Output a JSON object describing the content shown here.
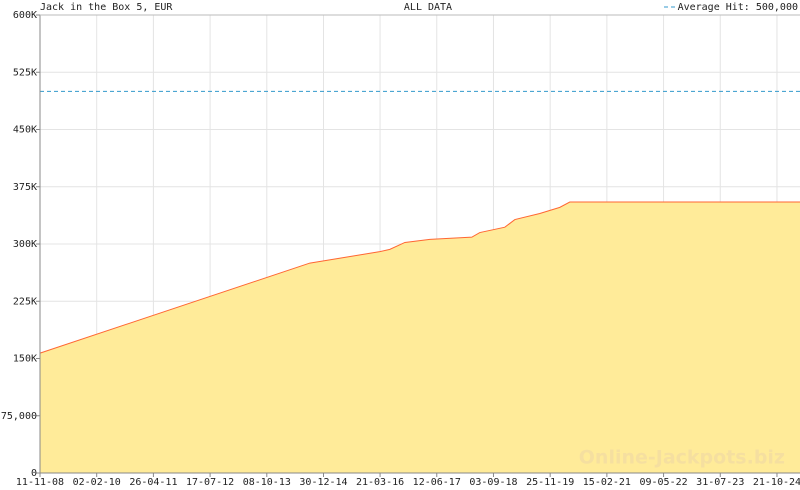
{
  "chart_data": {
    "type": "area",
    "title": "Jack in the Box  5, EUR",
    "subtitle": "ALL DATA",
    "watermark": "Online-Jackpots.biz",
    "reference": {
      "value": 500000,
      "label": "Average Hit: 500,000",
      "color": "#3399cc"
    },
    "x": [
      "2008-11-11",
      "2014-09-13",
      "2016-03-19",
      "2016-06-06",
      "2016-10-03",
      "2017-04-18",
      "2018-03-16",
      "2018-05-18",
      "2018-12-02",
      "2019-02-19",
      "2019-09-04",
      "2020-02-09",
      "2020-04-28",
      "2025-04-21"
    ],
    "series": [
      {
        "name": "Jack in the Box",
        "color": "#ff6633",
        "fill": "#ffeb99",
        "values": [
          157000,
          275000,
          290000,
          293000,
          302000,
          306000,
          309000,
          315000,
          322000,
          332000,
          340000,
          348000,
          355000,
          355000
        ]
      }
    ],
    "xlim": [
      "2008-11-11",
      "2025-04-21"
    ],
    "xticks": [
      {
        "value": "2008-11-11",
        "label": "11-11-08"
      },
      {
        "value": "2010-02-02",
        "label": "02-02-10"
      },
      {
        "value": "2011-04-26",
        "label": "26-04-11"
      },
      {
        "value": "2012-07-17",
        "label": "17-07-12"
      },
      {
        "value": "2013-10-08",
        "label": "08-10-13"
      },
      {
        "value": "2014-12-30",
        "label": "30-12-14"
      },
      {
        "value": "2016-03-21",
        "label": "21-03-16"
      },
      {
        "value": "2017-06-12",
        "label": "12-06-17"
      },
      {
        "value": "2018-09-03",
        "label": "03-09-18"
      },
      {
        "value": "2019-11-25",
        "label": "25-11-19"
      },
      {
        "value": "2021-02-15",
        "label": "15-02-21"
      },
      {
        "value": "2022-05-09",
        "label": "09-05-22"
      },
      {
        "value": "2023-07-31",
        "label": "31-07-23"
      },
      {
        "value": "2024-10-21",
        "label": "21-10-24"
      }
    ],
    "ylim": [
      0,
      600000
    ],
    "yticks": [
      0,
      {
        "value": 75000,
        "label": "75,000"
      },
      {
        "value": 150000,
        "label": "150K"
      },
      {
        "value": 225000,
        "label": "225K"
      },
      {
        "value": 300000,
        "label": "300K"
      },
      {
        "value": 375000,
        "label": "375K"
      },
      {
        "value": 450000,
        "label": "450K"
      },
      {
        "value": 525000,
        "label": "525K"
      },
      {
        "value": 600000,
        "label": "600K"
      }
    ],
    "grid": true
  }
}
